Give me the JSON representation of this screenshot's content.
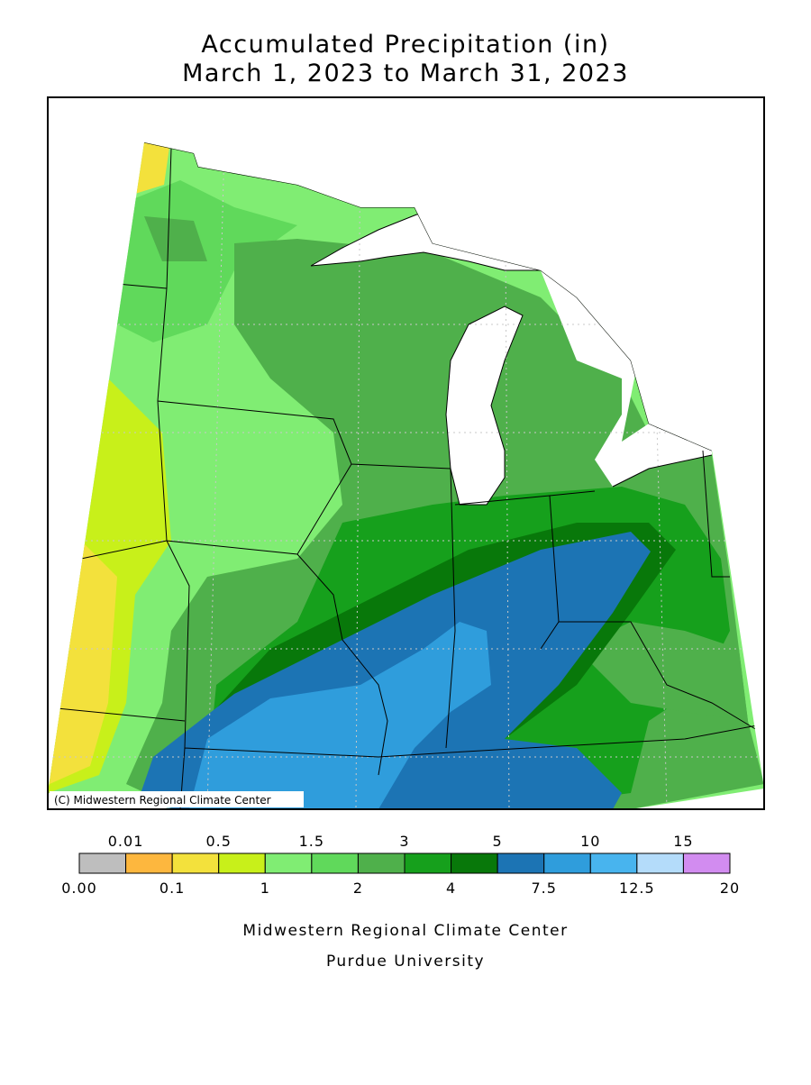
{
  "title": "Accumulated Precipitation (in)",
  "subtitle": "March 1, 2023 to March 31, 2023",
  "copyright": "(C) Midwestern Regional Climate Center",
  "legend": {
    "bounds": [
      {
        "value": 0,
        "label": "0.00"
      },
      0.01,
      0.1,
      0.5,
      1,
      1.5,
      2,
      3,
      4,
      5,
      7.5,
      10,
      12.5,
      15,
      20
    ],
    "colors": [
      "#bebebe",
      "#fdb73e",
      "#f3e13c",
      "#c8f01a",
      "#80ed73",
      "#60d95b",
      "#4fb04b",
      "#16a01c",
      "#08780a",
      "#1c74b4",
      "#2f9ddc",
      "#48b4ee",
      "#b4dcfa",
      "#d28cf0"
    ]
  },
  "footer": {
    "organization": "Midwestern Regional Climate Center",
    "institution": "Purdue University"
  }
}
